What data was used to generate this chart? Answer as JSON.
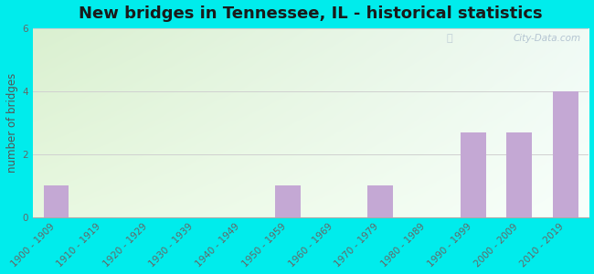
{
  "title": "New bridges in Tennessee, IL - historical statistics",
  "categories": [
    "1900 - 1909",
    "1910 - 1919",
    "1920 - 1929",
    "1930 - 1939",
    "1940 - 1949",
    "1950 - 1959",
    "1960 - 1969",
    "1970 - 1979",
    "1980 - 1989",
    "1990 - 1999",
    "2000 - 2009",
    "2010 - 2019"
  ],
  "values": [
    1,
    0,
    0,
    0,
    0,
    1,
    0,
    1,
    0,
    2.7,
    2.7,
    4
  ],
  "bar_color": "#c4a8d4",
  "ylabel": "number of bridges",
  "ylim": [
    0,
    6
  ],
  "yticks": [
    0,
    2,
    4,
    6
  ],
  "background_outer": "#00ecec",
  "grid_color": "#d0d0d0",
  "title_fontsize": 13,
  "label_fontsize": 8.5,
  "tick_fontsize": 7.5,
  "watermark": "City-Data.com"
}
